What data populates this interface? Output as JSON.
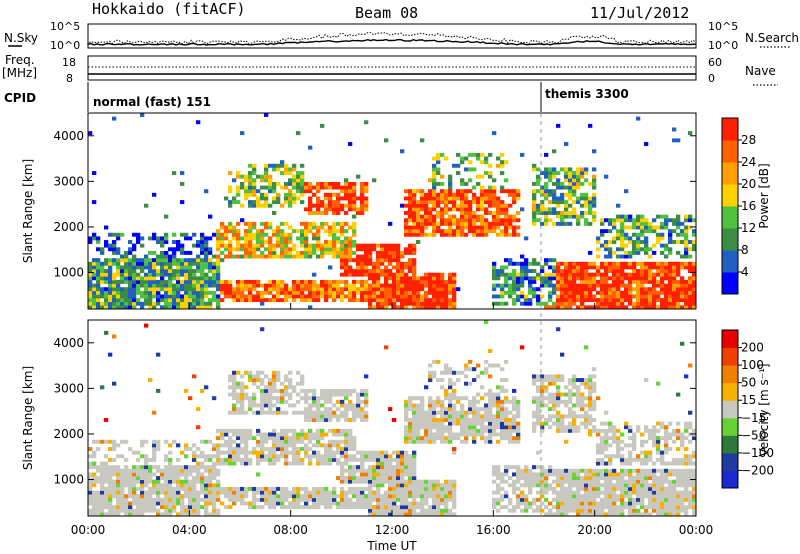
{
  "header": {
    "radar": "Hokkaido (fitACF)",
    "beam": "Beam 08",
    "date": "11/Jul/2012"
  },
  "labels": {
    "nsky": "N.Sky",
    "nsearch": "N.Search",
    "freq_top": "Freq.",
    "freq_bottom": "[MHz]",
    "nave": "Nave",
    "cpid": "CPID"
  },
  "noise_panel": {
    "ticks_left": [
      "10^5",
      "10^0"
    ],
    "ticks_right": [
      "10^5",
      "10^0"
    ]
  },
  "freq_panel": {
    "ticks_left": [
      "18",
      "8"
    ],
    "ticks_right": [
      "60",
      "0"
    ]
  },
  "cpid_panel": {
    "segments": [
      {
        "label": "normal (fast) 151",
        "start_hour": 0
      },
      {
        "label": "themis 3300",
        "start_hour": 18
      }
    ]
  },
  "time_axis": {
    "title": "Time UT",
    "ticks": [
      "00:00",
      "04:00",
      "08:00",
      "12:00",
      "16:00",
      "20:00",
      "00:00"
    ]
  },
  "colors": {
    "power": [
      "#0000ff",
      "#2060c0",
      "#3c8c46",
      "#50c040",
      "#ffd000",
      "#ffa000",
      "#ff6000",
      "#ff2000",
      "#e60000"
    ],
    "velocity": [
      "#1a2ad0",
      "#1f3aa0",
      "#2e7a3a",
      "#66d233",
      "#c8c8c0",
      "#f5b000",
      "#f08000",
      "#f04000",
      "#e60000"
    ]
  },
  "chart_data": [
    {
      "type": "heatmap",
      "name": "power",
      "ylabel": "Slant Range [km]",
      "ytick_labels": [
        "1000",
        "2000",
        "3000",
        "4000"
      ],
      "yticks": [
        1000,
        2000,
        3000,
        4000
      ],
      "ylim": [
        200,
        4500
      ],
      "xlim_hours": [
        0,
        24
      ],
      "colorbar": {
        "title": "Power [dB]",
        "tick_labels": [
          "4",
          "8",
          "12",
          "16",
          "20",
          "24",
          "28"
        ],
        "range": [
          0,
          30
        ]
      }
    },
    {
      "type": "heatmap",
      "name": "velocity",
      "ylabel": "Slant Range [km]",
      "ytick_labels": [
        "1000",
        "2000",
        "3000",
        "4000"
      ],
      "yticks": [
        1000,
        2000,
        3000,
        4000
      ],
      "ylim": [
        200,
        4500
      ],
      "xlim_hours": [
        0,
        24
      ],
      "colorbar": {
        "title": "Velocity [m s⁻¹]",
        "tick_labels": [
          "200",
          "100",
          "50",
          "15",
          "−15",
          "−50",
          "−100",
          "−200"
        ]
      }
    }
  ]
}
